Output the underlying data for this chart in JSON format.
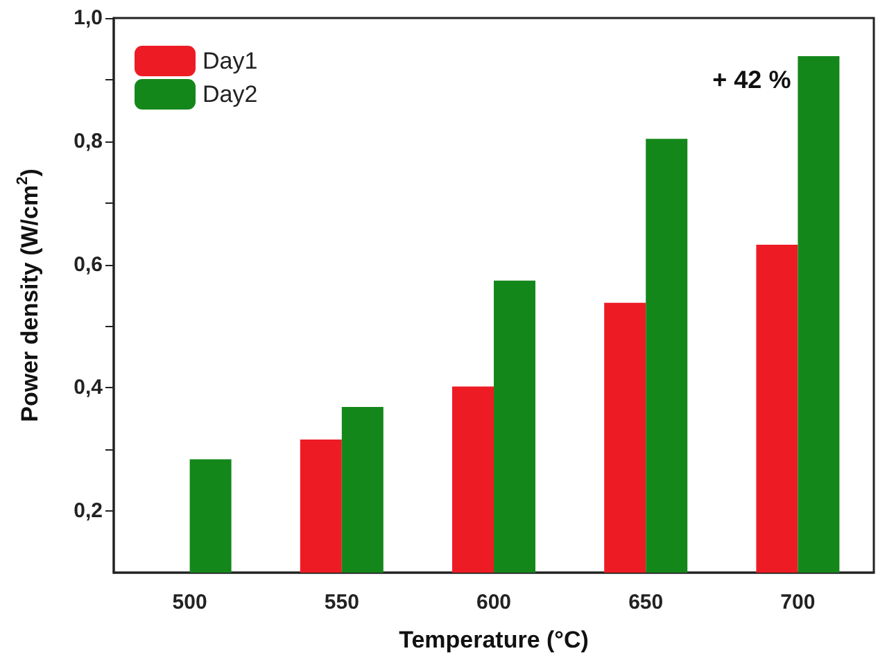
{
  "chart_data": {
    "type": "bar",
    "xlabel": "Temperature (°C)",
    "ylabel": "Power density (W/cm$^{2}$)",
    "categories": [
      "500",
      "550",
      "600",
      "650",
      "700"
    ],
    "series": [
      {
        "name": "Day1",
        "color": "#ed1c24",
        "values": [
          null,
          0.316,
          0.402,
          0.538,
          0.632
        ]
      },
      {
        "name": "Day2",
        "color": "#14871b",
        "values": [
          0.284,
          0.369,
          0.574,
          0.804,
          0.938
        ]
      }
    ],
    "ylim": [
      0.1,
      1.0
    ],
    "yticks": [
      {
        "value": 0.2,
        "label": "0,2"
      },
      {
        "value": 0.3,
        "label": null
      },
      {
        "value": 0.4,
        "label": "0,4"
      },
      {
        "value": 0.5,
        "label": null
      },
      {
        "value": 0.6,
        "label": "0,6"
      },
      {
        "value": 0.7,
        "label": null
      },
      {
        "value": 0.8,
        "label": "0,8"
      },
      {
        "value": 0.9,
        "label": null
      },
      {
        "value": 1.0,
        "label": "1,0"
      }
    ],
    "annotations": [
      {
        "text": "+ 42 %",
        "x": "700",
        "y": 0.9
      }
    ],
    "grid": false,
    "legend": "top left"
  }
}
